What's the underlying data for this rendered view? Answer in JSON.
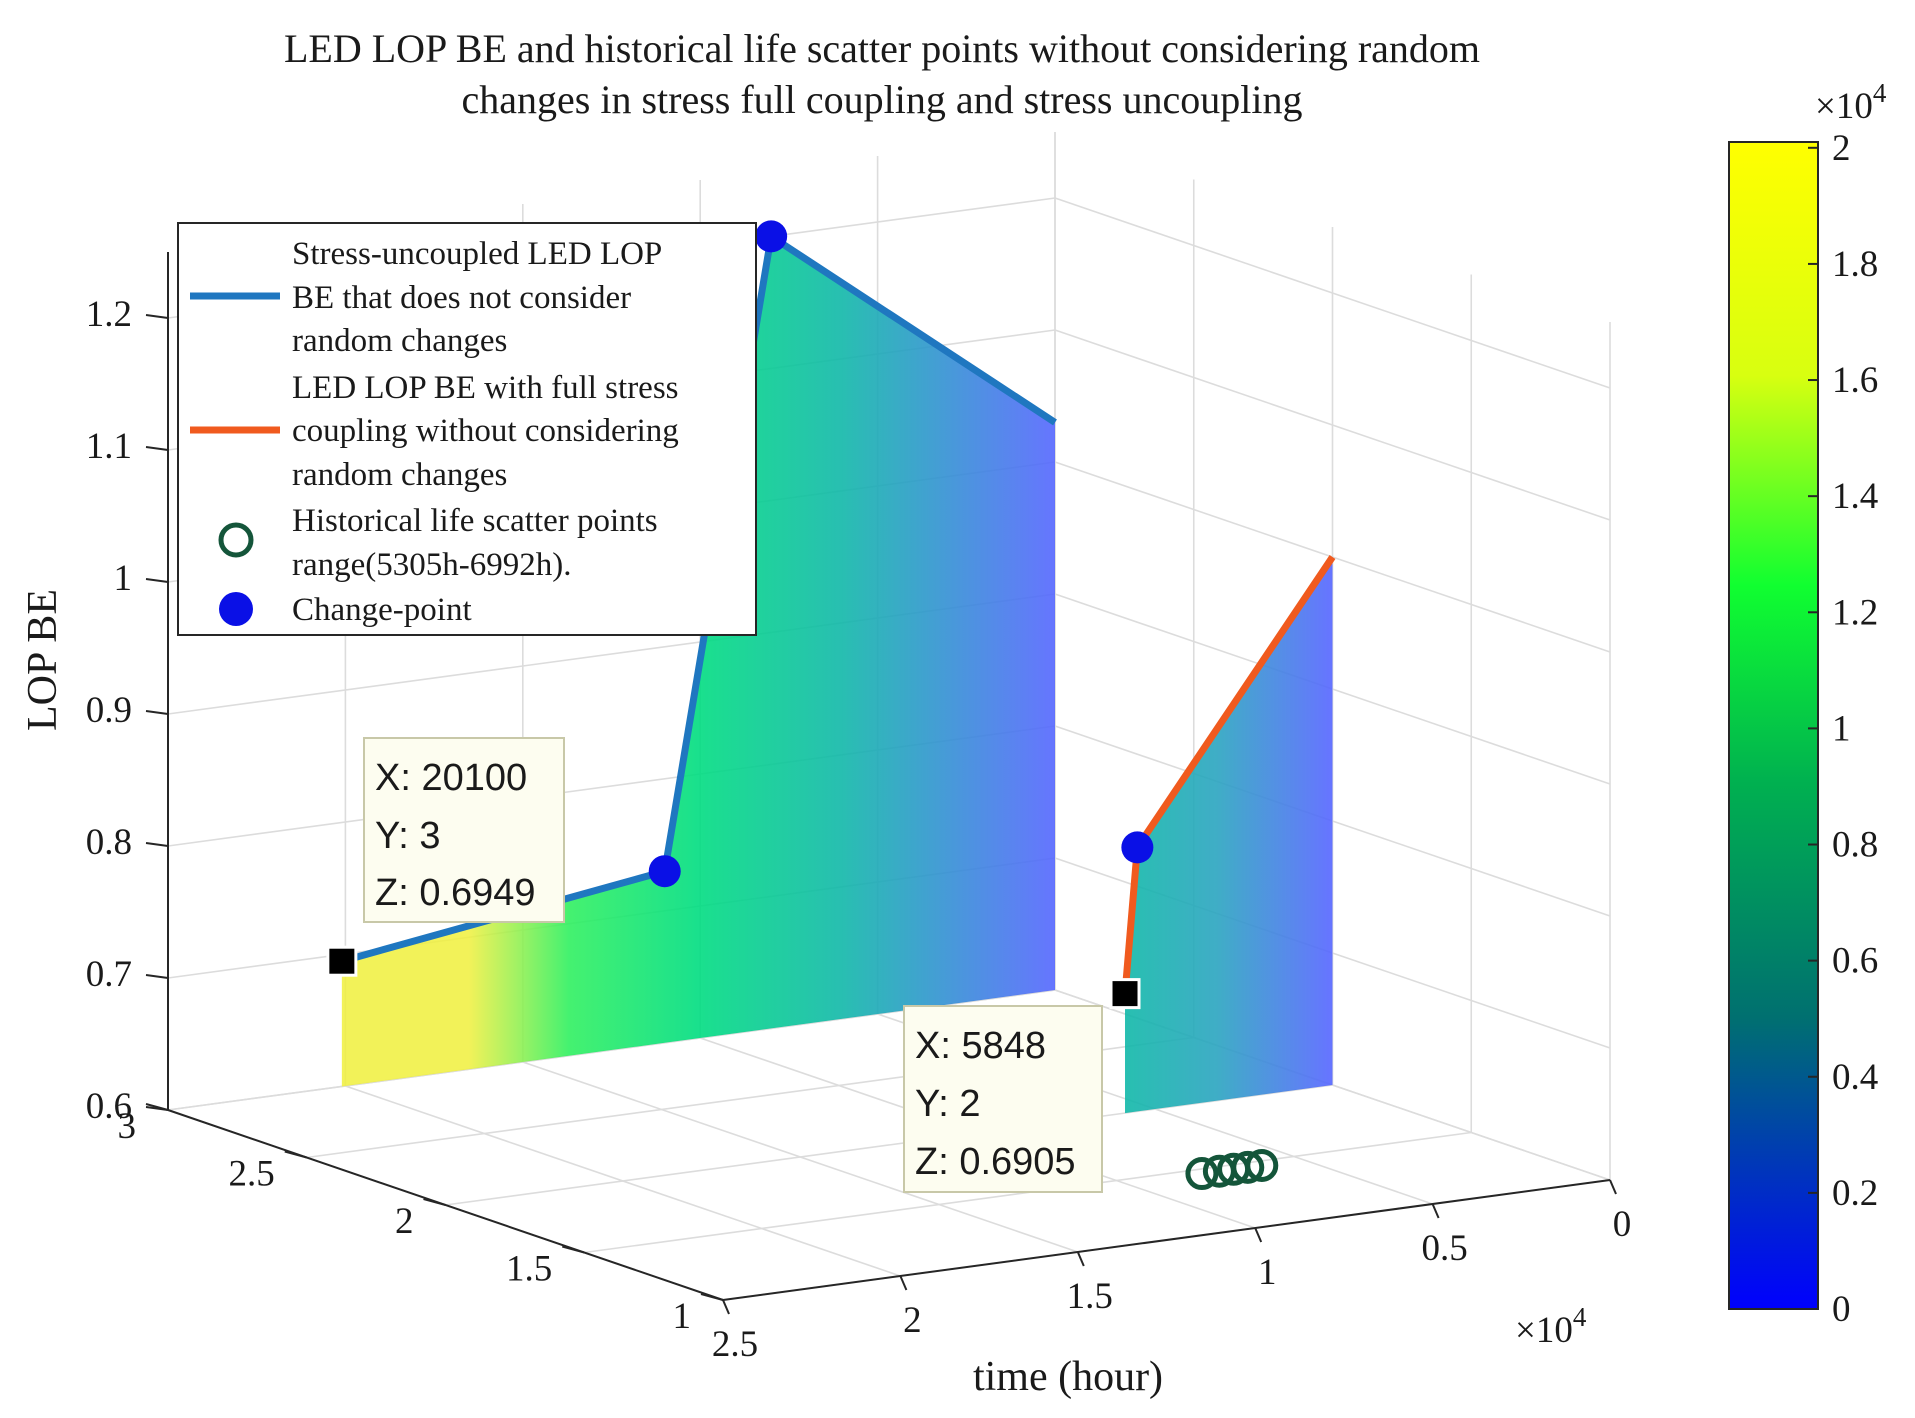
{
  "chart_data": {
    "type": "3d-line-with-surface",
    "title_lines": [
      "LED LOP BE and historical life scatter points without considering random",
      "changes in stress full coupling and stress uncoupling"
    ],
    "xlabel": "time (hour)",
    "ylabel": "",
    "zlabel": "LOP BE",
    "x_multiplier": "×10",
    "x_multiplier_exp": "4",
    "xlim": [
      0,
      25000
    ],
    "ylim": [
      1,
      3
    ],
    "zlim": [
      0.6,
      1.25
    ],
    "x_ticks": [
      {
        "v": 0,
        "label": "0"
      },
      {
        "v": 5000,
        "label": "0.5"
      },
      {
        "v": 10000,
        "label": "1"
      },
      {
        "v": 15000,
        "label": "1.5"
      },
      {
        "v": 20000,
        "label": "2"
      },
      {
        "v": 25000,
        "label": "2.5"
      }
    ],
    "y_ticks": [
      {
        "v": 1,
        "label": "1"
      },
      {
        "v": 1.5,
        "label": "1.5"
      },
      {
        "v": 2,
        "label": "2"
      },
      {
        "v": 2.5,
        "label": "2.5"
      },
      {
        "v": 3,
        "label": "3"
      }
    ],
    "z_ticks": [
      {
        "v": 0.6,
        "label": "0.6"
      },
      {
        "v": 0.7,
        "label": "0.7"
      },
      {
        "v": 0.8,
        "label": "0.8"
      },
      {
        "v": 0.9,
        "label": "0.9"
      },
      {
        "v": 1.0,
        "label": "1"
      },
      {
        "v": 1.1,
        "label": "1.1"
      },
      {
        "v": 1.2,
        "label": "1.2"
      }
    ],
    "series": [
      {
        "name": "Stress-uncoupled LED LOP BE that does not consider random changes",
        "legend_lines": [
          "Stress-uncoupled LED LOP",
          "BE that does not consider",
          "random changes"
        ],
        "color": "#1f77c0",
        "y": 3,
        "points": [
          [
            20100,
            0.6949
          ],
          [
            11000,
            0.73
          ],
          [
            8000,
            1.2
          ],
          [
            0,
            1.03
          ]
        ]
      },
      {
        "name": "LED LOP BE with full stress coupling without considering random changes",
        "legend_lines": [
          "LED LOP BE with full stress",
          "coupling without considering",
          "random changes"
        ],
        "color": "#f05a1e",
        "y": 2,
        "points": [
          [
            5848,
            0.6905
          ],
          [
            5500,
            0.8
          ],
          [
            0,
            1.0
          ]
        ]
      }
    ],
    "scatter": {
      "name": "Historical life scatter points range(5305h-6992h).",
      "legend_lines": [
        "Historical life scatter points",
        "range(5305h-6992h)."
      ],
      "color": "#14553a",
      "y": 1,
      "z": 0.6,
      "x": [
        5305,
        5700,
        6100,
        6500,
        6992
      ]
    },
    "change_points": {
      "name": "Change-point",
      "legend_lines": [
        "Change-point"
      ],
      "color": "#0a10e6",
      "points": [
        [
          11000,
          3,
          0.73
        ],
        [
          8000,
          3,
          1.2
        ],
        [
          5500,
          2,
          0.8
        ]
      ]
    },
    "datatips": [
      {
        "x": 20100,
        "y": 3,
        "z": 0.6949,
        "lines": [
          "X: 20100",
          "Y: 3",
          "Z: 0.6949"
        ]
      },
      {
        "x": 5848,
        "y": 2,
        "z": 0.6905,
        "lines": [
          "X: 5848",
          "Y: 2",
          "Z: 0.6905"
        ]
      }
    ],
    "colorbar": {
      "multiplier": "×10",
      "multiplier_exp": "4",
      "range": [
        0,
        20100
      ],
      "ticks": [
        {
          "v": 0,
          "label": "0"
        },
        {
          "v": 2000,
          "label": "0.2"
        },
        {
          "v": 4000,
          "label": "0.4"
        },
        {
          "v": 6000,
          "label": "0.6"
        },
        {
          "v": 8000,
          "label": "0.8"
        },
        {
          "v": 10000,
          "label": "1"
        },
        {
          "v": 12000,
          "label": "1.2"
        },
        {
          "v": 14000,
          "label": "1.4"
        },
        {
          "v": 16000,
          "label": "1.6"
        },
        {
          "v": 18000,
          "label": "1.8"
        },
        {
          "v": 20000,
          "label": "2"
        }
      ],
      "colors": [
        "#0000ff",
        "#00c8c8",
        "#00ff40",
        "#ffff00"
      ]
    }
  }
}
